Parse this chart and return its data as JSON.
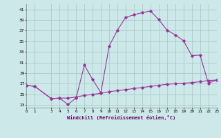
{
  "xlabel": "Windchill (Refroidissement éolien,°C)",
  "x_main": [
    0,
    1,
    3,
    4,
    5,
    6,
    7,
    8,
    9,
    10,
    11,
    12,
    13,
    14,
    15,
    16,
    17,
    18,
    19,
    20,
    21,
    22,
    23
  ],
  "y_main": [
    26.7,
    26.5,
    24.2,
    24.3,
    23.1,
    24.3,
    30.5,
    27.8,
    25.3,
    34.1,
    37.1,
    39.5,
    40.0,
    40.4,
    40.7,
    39.1,
    37.1,
    36.2,
    35.1,
    32.3,
    32.4,
    27.1,
    27.7
  ],
  "x_ref": [
    0,
    1,
    3,
    4,
    5,
    6,
    7,
    8,
    9,
    10,
    11,
    12,
    13,
    14,
    15,
    16,
    17,
    18,
    19,
    20,
    21,
    22,
    23
  ],
  "y_ref": [
    26.7,
    26.5,
    24.2,
    24.3,
    24.3,
    24.5,
    24.8,
    25.0,
    25.2,
    25.5,
    25.7,
    25.9,
    26.1,
    26.3,
    26.5,
    26.7,
    26.9,
    27.0,
    27.1,
    27.2,
    27.4,
    27.6,
    27.7
  ],
  "line_color": "#993399",
  "bg_color": "#cce8e8",
  "grid_color": "#aacccc",
  "yticks": [
    23,
    25,
    27,
    29,
    31,
    33,
    35,
    37,
    39,
    41
  ],
  "xticks": [
    0,
    1,
    3,
    4,
    5,
    6,
    7,
    8,
    9,
    10,
    11,
    12,
    13,
    14,
    15,
    16,
    17,
    18,
    19,
    20,
    21,
    22,
    23
  ],
  "xlim": [
    0,
    23
  ],
  "ylim": [
    22.5,
    42.0
  ]
}
